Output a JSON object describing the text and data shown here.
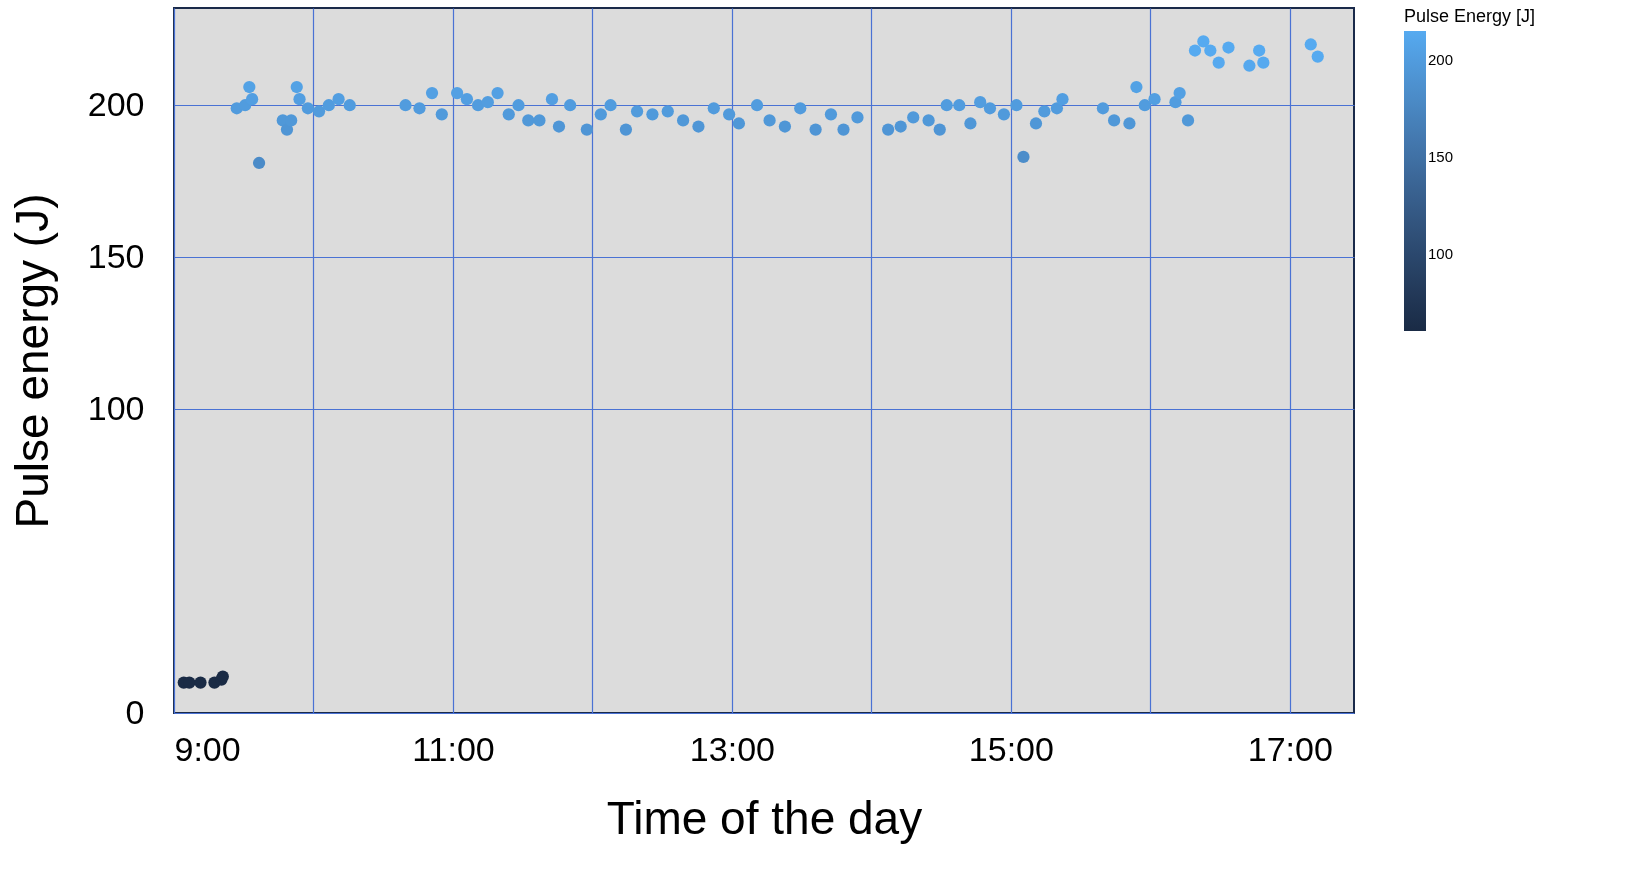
{
  "chart_data": {
    "type": "scatter",
    "xlabel": "Time of the day",
    "ylabel": "Pulse energy (J)",
    "clabel": "Pulse Energy [J]",
    "x": [
      9.07,
      9.11,
      9.19,
      9.29,
      9.34,
      9.35,
      9.45,
      9.51,
      9.54,
      9.56,
      9.61,
      9.78,
      9.81,
      9.84,
      9.88,
      9.9,
      9.96,
      10.04,
      10.11,
      10.18,
      10.26,
      10.66,
      10.76,
      10.85,
      10.92,
      11.03,
      11.1,
      11.18,
      11.25,
      11.32,
      11.4,
      11.47,
      11.54,
      11.62,
      11.71,
      11.76,
      11.84,
      11.96,
      12.06,
      12.13,
      12.24,
      12.32,
      12.43,
      12.54,
      12.65,
      12.76,
      12.87,
      12.98,
      13.05,
      13.18,
      13.27,
      13.38,
      13.49,
      13.6,
      13.71,
      13.8,
      13.9,
      14.12,
      14.21,
      14.3,
      14.41,
      14.49,
      14.54,
      14.63,
      14.71,
      14.78,
      14.85,
      14.95,
      15.04,
      15.09,
      15.18,
      15.24,
      15.33,
      15.37,
      15.66,
      15.74,
      15.85,
      15.9,
      15.96,
      16.03,
      16.18,
      16.21,
      16.27,
      16.32,
      16.38,
      16.43,
      16.49,
      16.56,
      16.71,
      16.78,
      16.81,
      17.15,
      17.2
    ],
    "values": [
      10,
      10,
      10,
      10,
      11,
      12,
      199,
      200,
      206,
      202,
      181,
      195,
      192,
      195,
      206,
      202,
      199,
      198,
      200,
      202,
      200,
      200,
      199,
      204,
      197,
      204,
      202,
      200,
      201,
      204,
      197,
      200,
      195,
      195,
      202,
      193,
      200,
      192,
      197,
      200,
      192,
      198,
      197,
      198,
      195,
      193,
      199,
      197,
      194,
      200,
      195,
      193,
      199,
      192,
      197,
      192,
      196,
      192,
      193,
      196,
      195,
      192,
      200,
      200,
      194,
      201,
      199,
      197,
      200,
      183,
      194,
      198,
      199,
      202,
      199,
      195,
      194,
      206,
      200,
      202,
      201,
      204,
      195,
      218,
      221,
      218,
      214,
      219,
      213,
      218,
      214,
      220,
      216
    ],
    "cvalues": [
      10,
      10,
      10,
      10,
      11,
      12,
      199,
      200,
      206,
      202,
      181,
      195,
      192,
      195,
      206,
      202,
      199,
      198,
      200,
      202,
      200,
      200,
      199,
      204,
      197,
      204,
      202,
      200,
      201,
      204,
      197,
      200,
      195,
      195,
      202,
      193,
      200,
      192,
      197,
      200,
      192,
      198,
      197,
      198,
      195,
      193,
      199,
      197,
      194,
      200,
      195,
      193,
      199,
      192,
      197,
      192,
      196,
      192,
      193,
      196,
      195,
      192,
      200,
      200,
      194,
      201,
      199,
      197,
      200,
      183,
      194,
      198,
      199,
      202,
      199,
      195,
      194,
      206,
      200,
      202,
      201,
      204,
      195,
      218,
      221,
      218,
      214,
      219,
      213,
      218,
      214,
      220,
      216
    ],
    "clim": [
      60,
      215
    ],
    "cticks": [
      100,
      150,
      200
    ],
    "xlim": [
      9,
      17.46
    ],
    "xticks": [
      {
        "value": 9,
        "label": "9:00"
      },
      {
        "value": 10,
        "label": null
      },
      {
        "value": 11,
        "label": "11:00"
      },
      {
        "value": 12,
        "label": null
      },
      {
        "value": 13,
        "label": "13:00"
      },
      {
        "value": 14,
        "label": null
      },
      {
        "value": 15,
        "label": "15:00"
      },
      {
        "value": 16,
        "label": null
      },
      {
        "value": 17,
        "label": "17:00"
      }
    ],
    "ylim": [
      0,
      232
    ],
    "yticks": [
      0,
      100,
      150,
      200
    ],
    "grid": true
  }
}
